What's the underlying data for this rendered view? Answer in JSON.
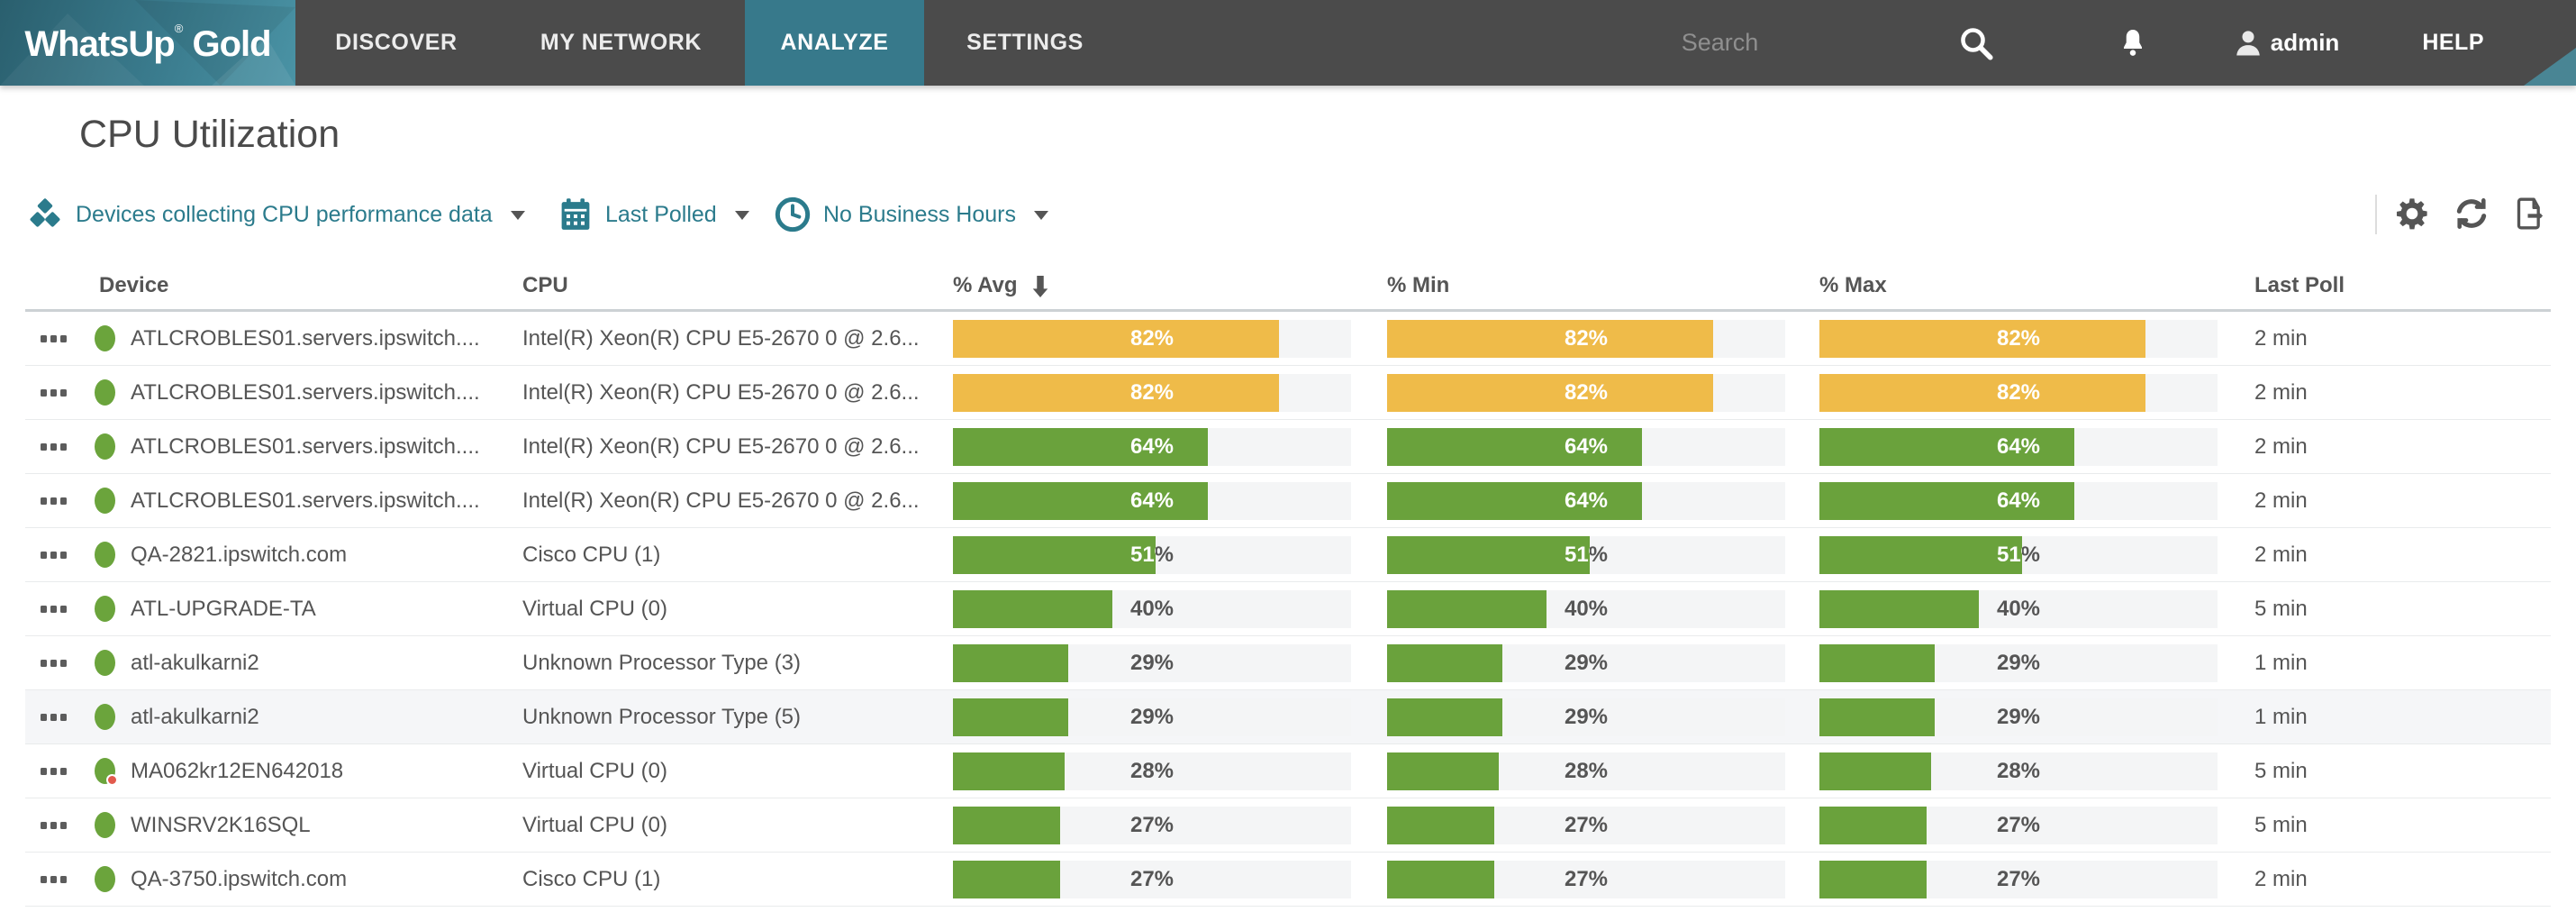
{
  "nav": {
    "logo": {
      "brand": "WhatsUp",
      "reg": "®",
      "brand2": "Gold"
    },
    "tabs": [
      {
        "label": "DISCOVER",
        "active": false
      },
      {
        "label": "MY NETWORK",
        "active": false
      },
      {
        "label": "ANALYZE",
        "active": true
      },
      {
        "label": "SETTINGS",
        "active": false
      }
    ],
    "search_placeholder": "Search",
    "username": "admin",
    "help_label": "HELP"
  },
  "page": {
    "title": "CPU Utilization",
    "filters": [
      {
        "icon": "devices-icon",
        "label": "Devices collecting CPU performance data"
      },
      {
        "icon": "calendar-icon",
        "label": "Last Polled"
      },
      {
        "icon": "clock-icon",
        "label": "No Business Hours"
      }
    ],
    "toolbar_icons": [
      "settings-gear-icon",
      "refresh-icon",
      "export-icon"
    ]
  },
  "table": {
    "columns": [
      "Device",
      "CPU",
      "% Avg",
      "% Min",
      "% Max",
      "Last Poll"
    ],
    "sort_column": "% Avg",
    "sort_direction": "descending",
    "rows": [
      {
        "device": "ATLCROBLES01.servers.ipswitch....",
        "cpu": "Intel(R) Xeon(R) CPU E5-2670 0 @ 2.6...",
        "avg": 82,
        "min": 82,
        "max": 82,
        "last_poll": "2 min",
        "status": "up",
        "badge": false,
        "highlighted": false
      },
      {
        "device": "ATLCROBLES01.servers.ipswitch....",
        "cpu": "Intel(R) Xeon(R) CPU E5-2670 0 @ 2.6...",
        "avg": 82,
        "min": 82,
        "max": 82,
        "last_poll": "2 min",
        "status": "up",
        "badge": false,
        "highlighted": false
      },
      {
        "device": "ATLCROBLES01.servers.ipswitch....",
        "cpu": "Intel(R) Xeon(R) CPU E5-2670 0 @ 2.6...",
        "avg": 64,
        "min": 64,
        "max": 64,
        "last_poll": "2 min",
        "status": "up",
        "badge": false,
        "highlighted": false
      },
      {
        "device": "ATLCROBLES01.servers.ipswitch....",
        "cpu": "Intel(R) Xeon(R) CPU E5-2670 0 @ 2.6...",
        "avg": 64,
        "min": 64,
        "max": 64,
        "last_poll": "2 min",
        "status": "up",
        "badge": false,
        "highlighted": false
      },
      {
        "device": "QA-2821.ipswitch.com",
        "cpu": "Cisco CPU (1)",
        "avg": 51,
        "min": 51,
        "max": 51,
        "last_poll": "2 min",
        "status": "up",
        "badge": false,
        "highlighted": false
      },
      {
        "device": "ATL-UPGRADE-TA",
        "cpu": "Virtual CPU (0)",
        "avg": 40,
        "min": 40,
        "max": 40,
        "last_poll": "5 min",
        "status": "up",
        "badge": false,
        "highlighted": false
      },
      {
        "device": "atl-akulkarni2",
        "cpu": "Unknown Processor Type (3)",
        "avg": 29,
        "min": 29,
        "max": 29,
        "last_poll": "1 min",
        "status": "up",
        "badge": false,
        "highlighted": false
      },
      {
        "device": "atl-akulkarni2",
        "cpu": "Unknown Processor Type (5)",
        "avg": 29,
        "min": 29,
        "max": 29,
        "last_poll": "1 min",
        "status": "up",
        "badge": false,
        "highlighted": true
      },
      {
        "device": "MA062kr12EN642018",
        "cpu": "Virtual CPU (0)",
        "avg": 28,
        "min": 28,
        "max": 28,
        "last_poll": "5 min",
        "status": "up",
        "badge": true,
        "highlighted": false
      },
      {
        "device": "WINSRV2K16SQL",
        "cpu": "Virtual CPU (0)",
        "avg": 27,
        "min": 27,
        "max": 27,
        "last_poll": "5 min",
        "status": "up",
        "badge": false,
        "highlighted": false
      },
      {
        "device": "QA-3750.ipswitch.com",
        "cpu": "Cisco CPU (1)",
        "avg": 27,
        "min": 27,
        "max": 27,
        "last_poll": "2 min",
        "status": "up",
        "badge": false,
        "highlighted": false
      }
    ]
  },
  "colors": {
    "nav_dark": "#4b4b4b",
    "tab_active_teal": "#37798b",
    "accent": "#2b7b8c",
    "bar_ok": "#6aa23c",
    "bar_warn": "#efbb49",
    "bar_track": "#f4f5f6",
    "status_up": "#6ba43c",
    "status_badge": "#e25a4d",
    "warn_threshold": 70
  }
}
